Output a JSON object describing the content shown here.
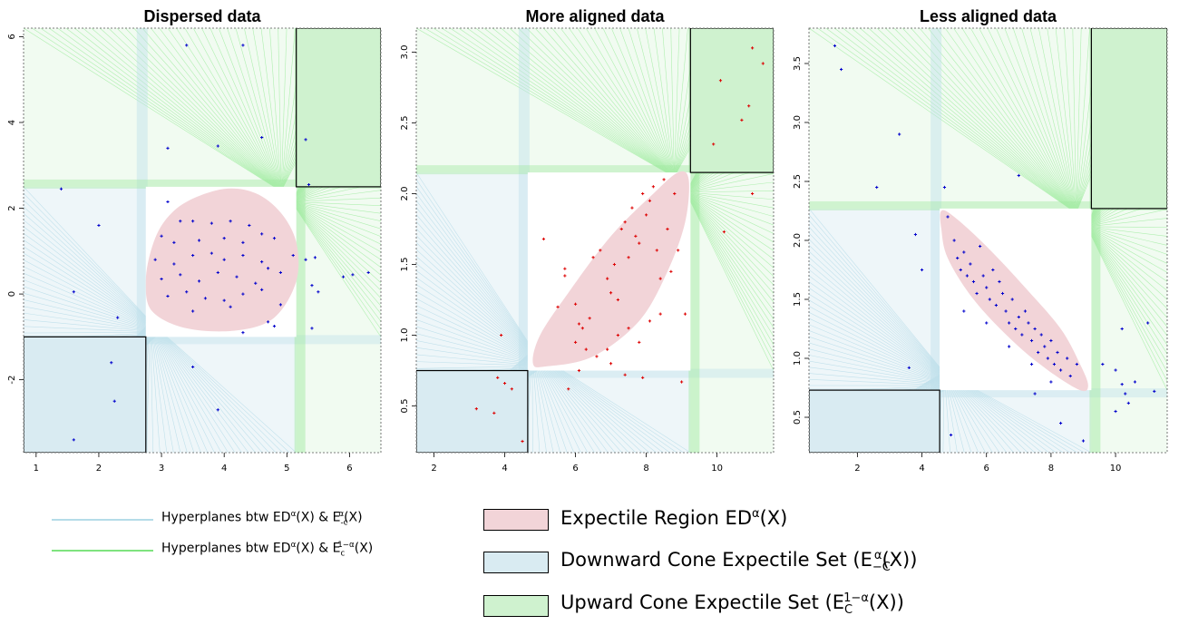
{
  "colors": {
    "region_fill": "#f2d4d8",
    "downward_fill": "#d9ebf2",
    "upward_fill": "#cff2cf",
    "downward_line": "#9ccfe0",
    "upward_line": "#6fe36f",
    "point_red": "#dd0000",
    "point_blue": "#0000cc"
  },
  "legend": {
    "lines": [
      {
        "label": "Hyperplanes btw ED",
        "sup1": "α",
        "mid": "(X) & E",
        "sub2": "-c",
        "sup2": "α",
        "tail": "(X)",
        "color": "#b5dce8"
      },
      {
        "label": "Hyperplanes btw ED",
        "sup1": "α",
        "mid": "(X) & E",
        "sub2": "c",
        "sup2": "1−α",
        "tail": "(X)",
        "color": "#7fe37f"
      }
    ],
    "boxes": [
      {
        "label": "Expectile Region ED",
        "sup": "α",
        "tail": "(X)",
        "color": "#f2d4d8"
      },
      {
        "label": "Downward Cone Expectile Set (E",
        "sub": "−C",
        "sup": "α",
        "tail": "(X))",
        "color": "#d9ebf2"
      },
      {
        "label": "Upward Cone Expectile Set (E",
        "sub": "C",
        "sup": "1−α",
        "tail": "(X))",
        "color": "#cff2cf"
      }
    ]
  },
  "chart_data": [
    {
      "type": "scatter",
      "title": "Dispersed data",
      "xlim": [
        0.8,
        6.5
      ],
      "ylim": [
        -3.7,
        6.2
      ],
      "xticks": [
        1,
        2,
        3,
        4,
        5,
        6
      ],
      "yticks": [
        -2,
        0,
        2,
        4,
        6
      ],
      "point_color": "#0000cc",
      "region_points": [
        [
          2.75,
          0.3
        ],
        [
          2.85,
          1.1
        ],
        [
          3.05,
          1.7
        ],
        [
          3.4,
          2.15
        ],
        [
          4.0,
          2.45
        ],
        [
          4.5,
          2.35
        ],
        [
          4.9,
          1.9
        ],
        [
          5.15,
          1.2
        ],
        [
          5.15,
          0.3
        ],
        [
          4.8,
          -0.55
        ],
        [
          4.2,
          -0.85
        ],
        [
          3.4,
          -0.8
        ],
        [
          2.85,
          -0.4
        ]
      ],
      "region_box": [
        2.75,
        5.15,
        -1.0,
        2.5
      ],
      "downward_box": [
        0.8,
        2.75,
        -3.7,
        -1.0
      ],
      "upward_box": [
        5.15,
        6.5,
        2.5,
        6.2
      ],
      "points": [
        [
          3.1,
          2.15
        ],
        [
          3.3,
          1.7
        ],
        [
          3.5,
          1.7
        ],
        [
          3.8,
          1.65
        ],
        [
          4.1,
          1.7
        ],
        [
          4.4,
          1.6
        ],
        [
          3.0,
          1.35
        ],
        [
          3.2,
          1.2
        ],
        [
          3.6,
          1.25
        ],
        [
          4.0,
          1.3
        ],
        [
          4.3,
          1.2
        ],
        [
          4.6,
          1.4
        ],
        [
          4.8,
          1.3
        ],
        [
          2.9,
          0.8
        ],
        [
          3.2,
          0.7
        ],
        [
          3.5,
          0.9
        ],
        [
          3.8,
          0.95
        ],
        [
          4.0,
          0.8
        ],
        [
          4.3,
          0.9
        ],
        [
          4.6,
          0.75
        ],
        [
          4.9,
          0.5
        ],
        [
          3.0,
          0.35
        ],
        [
          3.3,
          0.45
        ],
        [
          3.6,
          0.3
        ],
        [
          3.9,
          0.5
        ],
        [
          4.2,
          0.4
        ],
        [
          4.5,
          0.25
        ],
        [
          4.7,
          0.6
        ],
        [
          3.1,
          -0.05
        ],
        [
          3.4,
          0.05
        ],
        [
          3.7,
          -0.1
        ],
        [
          4.0,
          -0.15
        ],
        [
          4.3,
          0.0
        ],
        [
          4.6,
          0.1
        ],
        [
          4.9,
          -0.25
        ],
        [
          3.5,
          -0.4
        ],
        [
          4.1,
          -0.3
        ],
        [
          4.7,
          -0.65
        ],
        [
          4.8,
          -0.75
        ],
        [
          4.3,
          -0.9
        ],
        [
          5.1,
          0.9
        ],
        [
          5.3,
          0.8
        ],
        [
          5.45,
          0.85
        ],
        [
          5.4,
          0.2
        ],
        [
          5.5,
          0.05
        ],
        [
          5.9,
          0.4
        ],
        [
          6.05,
          0.45
        ],
        [
          6.3,
          0.5
        ],
        [
          5.4,
          -0.8
        ],
        [
          1.4,
          2.45
        ],
        [
          1.6,
          0.05
        ],
        [
          2.0,
          1.6
        ],
        [
          2.2,
          -1.6
        ],
        [
          2.25,
          -2.5
        ],
        [
          1.6,
          -3.4
        ],
        [
          2.3,
          -0.55
        ],
        [
          3.4,
          5.8
        ],
        [
          4.3,
          5.8
        ],
        [
          3.9,
          3.45
        ],
        [
          4.6,
          3.65
        ],
        [
          5.3,
          3.6
        ],
        [
          5.35,
          2.55
        ],
        [
          3.1,
          3.4
        ],
        [
          3.9,
          -2.7
        ],
        [
          3.5,
          -1.7
        ]
      ]
    },
    {
      "type": "scatter",
      "title": "More aligned data",
      "xlim": [
        1.5,
        11.6
      ],
      "ylim": [
        0.17,
        3.17
      ],
      "xticks": [
        2,
        4,
        6,
        8,
        10
      ],
      "yticks": [
        0.5,
        1.0,
        1.5,
        2.0,
        2.5,
        3.0
      ],
      "point_color": "#dd0000",
      "region_points": [
        [
          4.8,
          0.8
        ],
        [
          5.2,
          0.78
        ],
        [
          6.5,
          0.85
        ],
        [
          7.8,
          1.1
        ],
        [
          8.6,
          1.45
        ],
        [
          9.1,
          1.8
        ],
        [
          9.2,
          2.1
        ],
        [
          8.9,
          2.15
        ],
        [
          8.2,
          2.0
        ],
        [
          7.0,
          1.7
        ],
        [
          5.8,
          1.3
        ],
        [
          5.0,
          1.0
        ]
      ],
      "region_box": [
        4.65,
        9.25,
        0.75,
        2.15
      ],
      "downward_box": [
        1.5,
        4.65,
        0.17,
        0.75
      ],
      "upward_box": [
        9.25,
        11.6,
        2.15,
        3.17
      ],
      "points": [
        [
          5.1,
          1.68
        ],
        [
          5.7,
          1.47
        ],
        [
          5.7,
          1.42
        ],
        [
          6.0,
          1.22
        ],
        [
          6.1,
          1.08
        ],
        [
          6.2,
          1.05
        ],
        [
          6.4,
          1.12
        ],
        [
          6.5,
          1.55
        ],
        [
          6.7,
          1.6
        ],
        [
          6.9,
          1.4
        ],
        [
          7.0,
          1.3
        ],
        [
          7.1,
          1.5
        ],
        [
          7.2,
          1.25
        ],
        [
          7.3,
          1.75
        ],
        [
          7.4,
          1.8
        ],
        [
          7.5,
          1.55
        ],
        [
          7.6,
          1.9
        ],
        [
          7.7,
          1.7
        ],
        [
          7.8,
          1.65
        ],
        [
          7.9,
          2.0
        ],
        [
          8.0,
          1.85
        ],
        [
          8.1,
          1.95
        ],
        [
          8.2,
          2.05
        ],
        [
          8.3,
          1.6
        ],
        [
          8.4,
          1.4
        ],
        [
          8.5,
          2.1
        ],
        [
          8.6,
          1.75
        ],
        [
          8.7,
          1.45
        ],
        [
          8.8,
          2.0
        ],
        [
          8.9,
          1.6
        ],
        [
          6.0,
          0.95
        ],
        [
          6.3,
          0.9
        ],
        [
          6.6,
          0.85
        ],
        [
          6.9,
          0.9
        ],
        [
          7.2,
          1.0
        ],
        [
          7.5,
          1.05
        ],
        [
          7.8,
          0.95
        ],
        [
          8.1,
          1.1
        ],
        [
          8.4,
          1.15
        ],
        [
          5.5,
          1.2
        ],
        [
          6.1,
          0.75
        ],
        [
          7.0,
          0.8
        ],
        [
          7.4,
          0.72
        ],
        [
          7.9,
          0.7
        ],
        [
          5.8,
          0.62
        ],
        [
          3.2,
          0.48
        ],
        [
          3.7,
          0.45
        ],
        [
          3.8,
          0.7
        ],
        [
          4.0,
          0.66
        ],
        [
          4.2,
          0.62
        ],
        [
          4.5,
          0.25
        ],
        [
          3.9,
          1.0
        ],
        [
          9.0,
          0.67
        ],
        [
          9.1,
          1.15
        ],
        [
          9.9,
          2.35
        ],
        [
          10.1,
          2.8
        ],
        [
          10.7,
          2.52
        ],
        [
          10.9,
          2.62
        ],
        [
          11.0,
          3.03
        ],
        [
          11.3,
          2.92
        ],
        [
          11.0,
          2.0
        ],
        [
          10.2,
          1.73
        ]
      ]
    },
    {
      "type": "scatter",
      "title": "Less aligned data",
      "xlim": [
        0.5,
        11.6
      ],
      "ylim": [
        0.2,
        3.8
      ],
      "xticks": [
        2,
        4,
        6,
        8,
        10
      ],
      "yticks": [
        0.5,
        1.0,
        1.5,
        2.0,
        2.5,
        3.0,
        3.5
      ],
      "point_color": "#0000cc",
      "region_points": [
        [
          4.6,
          2.25
        ],
        [
          5.0,
          2.2
        ],
        [
          6.0,
          1.95
        ],
        [
          7.2,
          1.6
        ],
        [
          8.3,
          1.25
        ],
        [
          8.9,
          0.95
        ],
        [
          9.15,
          0.77
        ],
        [
          8.9,
          0.73
        ],
        [
          7.9,
          0.9
        ],
        [
          6.8,
          1.15
        ],
        [
          5.6,
          1.5
        ],
        [
          4.8,
          1.85
        ],
        [
          4.6,
          2.1
        ]
      ],
      "region_box": [
        4.55,
        9.25,
        0.73,
        2.27
      ],
      "downward_box": [
        0.5,
        4.55,
        0.2,
        0.73
      ],
      "upward_box": [
        9.25,
        11.6,
        2.27,
        3.8
      ],
      "points": [
        [
          4.8,
          2.2
        ],
        [
          5.0,
          2.0
        ],
        [
          5.1,
          1.85
        ],
        [
          5.2,
          1.75
        ],
        [
          5.3,
          1.9
        ],
        [
          5.4,
          1.7
        ],
        [
          5.5,
          1.8
        ],
        [
          5.6,
          1.65
        ],
        [
          5.7,
          1.55
        ],
        [
          5.8,
          1.95
        ],
        [
          5.9,
          1.7
        ],
        [
          6.0,
          1.6
        ],
        [
          6.1,
          1.5
        ],
        [
          6.2,
          1.75
        ],
        [
          6.3,
          1.45
        ],
        [
          6.4,
          1.65
        ],
        [
          6.5,
          1.55
        ],
        [
          6.6,
          1.4
        ],
        [
          6.7,
          1.3
        ],
        [
          6.8,
          1.5
        ],
        [
          6.9,
          1.25
        ],
        [
          7.0,
          1.35
        ],
        [
          7.1,
          1.2
        ],
        [
          7.2,
          1.4
        ],
        [
          7.3,
          1.3
        ],
        [
          7.4,
          1.15
        ],
        [
          7.5,
          1.25
        ],
        [
          7.6,
          1.05
        ],
        [
          7.7,
          1.2
        ],
        [
          7.8,
          1.1
        ],
        [
          7.9,
          1.0
        ],
        [
          8.0,
          1.15
        ],
        [
          8.1,
          0.95
        ],
        [
          8.2,
          1.05
        ],
        [
          8.3,
          0.9
        ],
        [
          8.5,
          1.0
        ],
        [
          8.6,
          0.85
        ],
        [
          8.8,
          0.95
        ],
        [
          5.3,
          1.4
        ],
        [
          6.0,
          1.3
        ],
        [
          6.7,
          1.1
        ],
        [
          7.4,
          0.95
        ],
        [
          8.0,
          0.8
        ],
        [
          4.9,
          0.35
        ],
        [
          7.5,
          0.7
        ],
        [
          8.3,
          0.45
        ],
        [
          9.0,
          0.3
        ],
        [
          9.6,
          0.95
        ],
        [
          10.0,
          0.9
        ],
        [
          10.2,
          0.78
        ],
        [
          10.3,
          0.7
        ],
        [
          10.4,
          0.62
        ],
        [
          10.6,
          0.8
        ],
        [
          11.2,
          0.72
        ],
        [
          10.0,
          0.55
        ],
        [
          10.2,
          1.25
        ],
        [
          11.0,
          1.3
        ],
        [
          1.3,
          3.65
        ],
        [
          1.5,
          3.45
        ],
        [
          2.6,
          2.45
        ],
        [
          3.8,
          2.05
        ],
        [
          4.0,
          1.75
        ],
        [
          3.3,
          2.9
        ],
        [
          4.7,
          2.45
        ],
        [
          7.0,
          2.55
        ],
        [
          3.6,
          0.92
        ]
      ]
    }
  ]
}
